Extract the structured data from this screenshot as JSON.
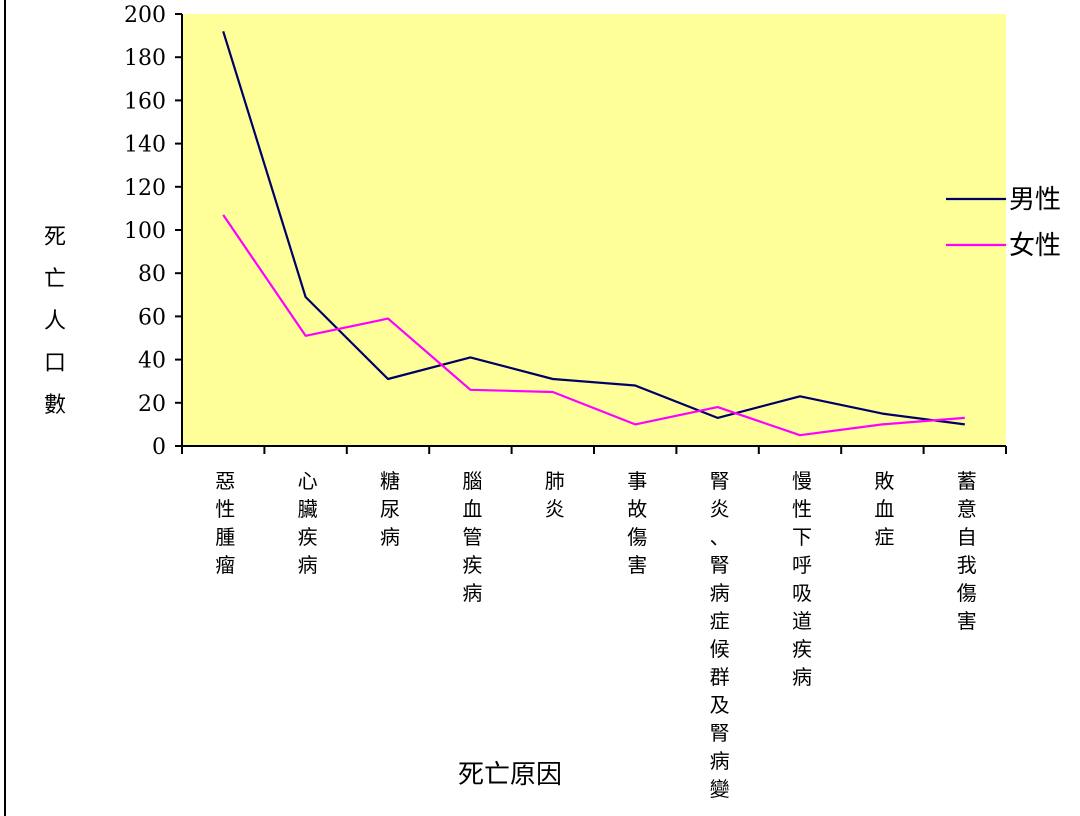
{
  "chart_data": {
    "type": "line",
    "categories": [
      "惡性腫瘤",
      "心臟疾病",
      "糖尿病",
      "腦血管疾病",
      "肺炎",
      "事故傷害",
      "腎炎、腎病症候群及腎病變",
      "慢性下呼吸道疾病",
      "敗血症",
      "蓄意自我傷害"
    ],
    "series": [
      {
        "name": "男性",
        "color": "#000066",
        "values": [
          192,
          69,
          31,
          41,
          31,
          28,
          13,
          23,
          15,
          10
        ]
      },
      {
        "name": "女性",
        "color": "#ff00ff",
        "values": [
          107,
          51,
          59,
          26,
          25,
          10,
          18,
          5,
          10,
          13
        ]
      }
    ],
    "ylabel": "死亡人口數",
    "xlabel": "死亡原因",
    "ylim": [
      0,
      200
    ],
    "yticks": [
      "0",
      "20",
      "40",
      "60",
      "80",
      "100",
      "120",
      "140",
      "160",
      "180",
      "200"
    ],
    "plot_background": "#ffff99",
    "grid": false,
    "legend_position": "right"
  }
}
